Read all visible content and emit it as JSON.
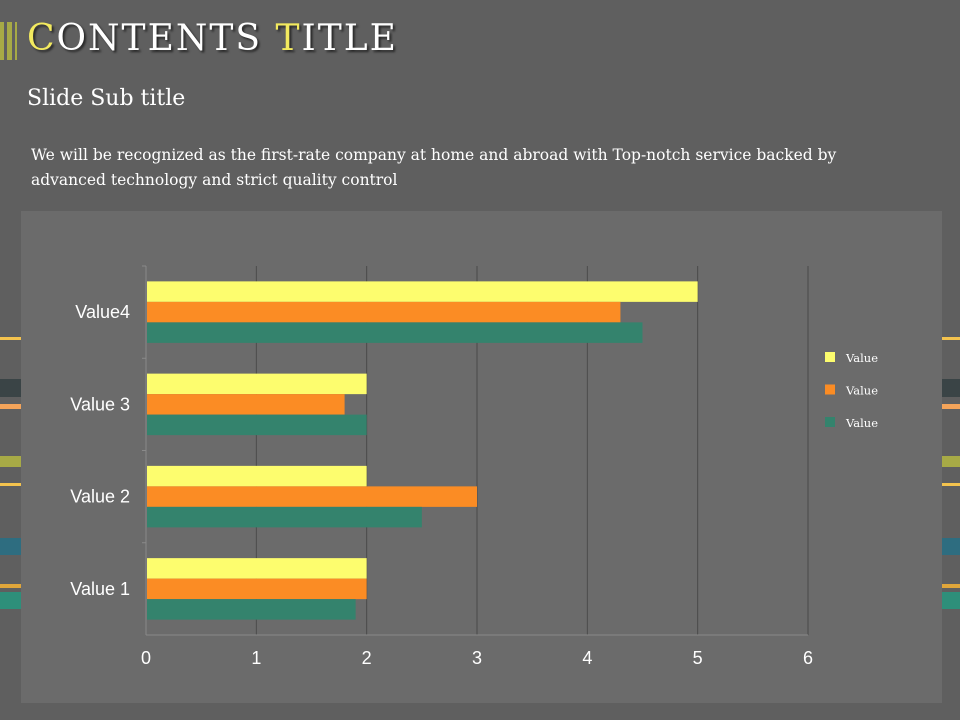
{
  "header": {
    "title_first_letter": "C",
    "title_first_rest": "ONTENTS ",
    "title_second_letter": "T",
    "title_second_rest": "ITLE",
    "subtitle": "Slide Sub title",
    "body": "We will be recognized as the first-rate company at home and abroad with Top-notch service backed by   advanced technology and strict quality control"
  },
  "colors": {
    "background": "#5f5f5f",
    "panel": "#6b6b6b",
    "title_accent": "#f3ea5f",
    "title_bars": "#a7aa46",
    "series": [
      "#fdfd6e",
      "#fb8c24",
      "#34836d"
    ],
    "stripes": [
      "#f4c34e",
      "#3a4446",
      "#f4a45a",
      "#a7aa46",
      "#f4c34e",
      "#2e6d80",
      "#e0a63a",
      "#2e8f7a"
    ]
  },
  "chart_data": {
    "type": "bar",
    "orientation": "horizontal",
    "categories": [
      "Value 1",
      "Value 2",
      "Value 3",
      "Value4"
    ],
    "series": [
      {
        "name": "Value",
        "values": [
          2,
          2,
          2,
          5
        ]
      },
      {
        "name": "Value",
        "values": [
          2,
          3,
          1.8,
          4.3
        ]
      },
      {
        "name": "Value",
        "values": [
          1.9,
          2.5,
          2,
          4.5
        ]
      }
    ],
    "xlim": [
      0,
      6
    ],
    "xticks": [
      "0",
      "1",
      "2",
      "3",
      "4",
      "5",
      "6"
    ],
    "grid": "vertical",
    "legend": "right"
  }
}
